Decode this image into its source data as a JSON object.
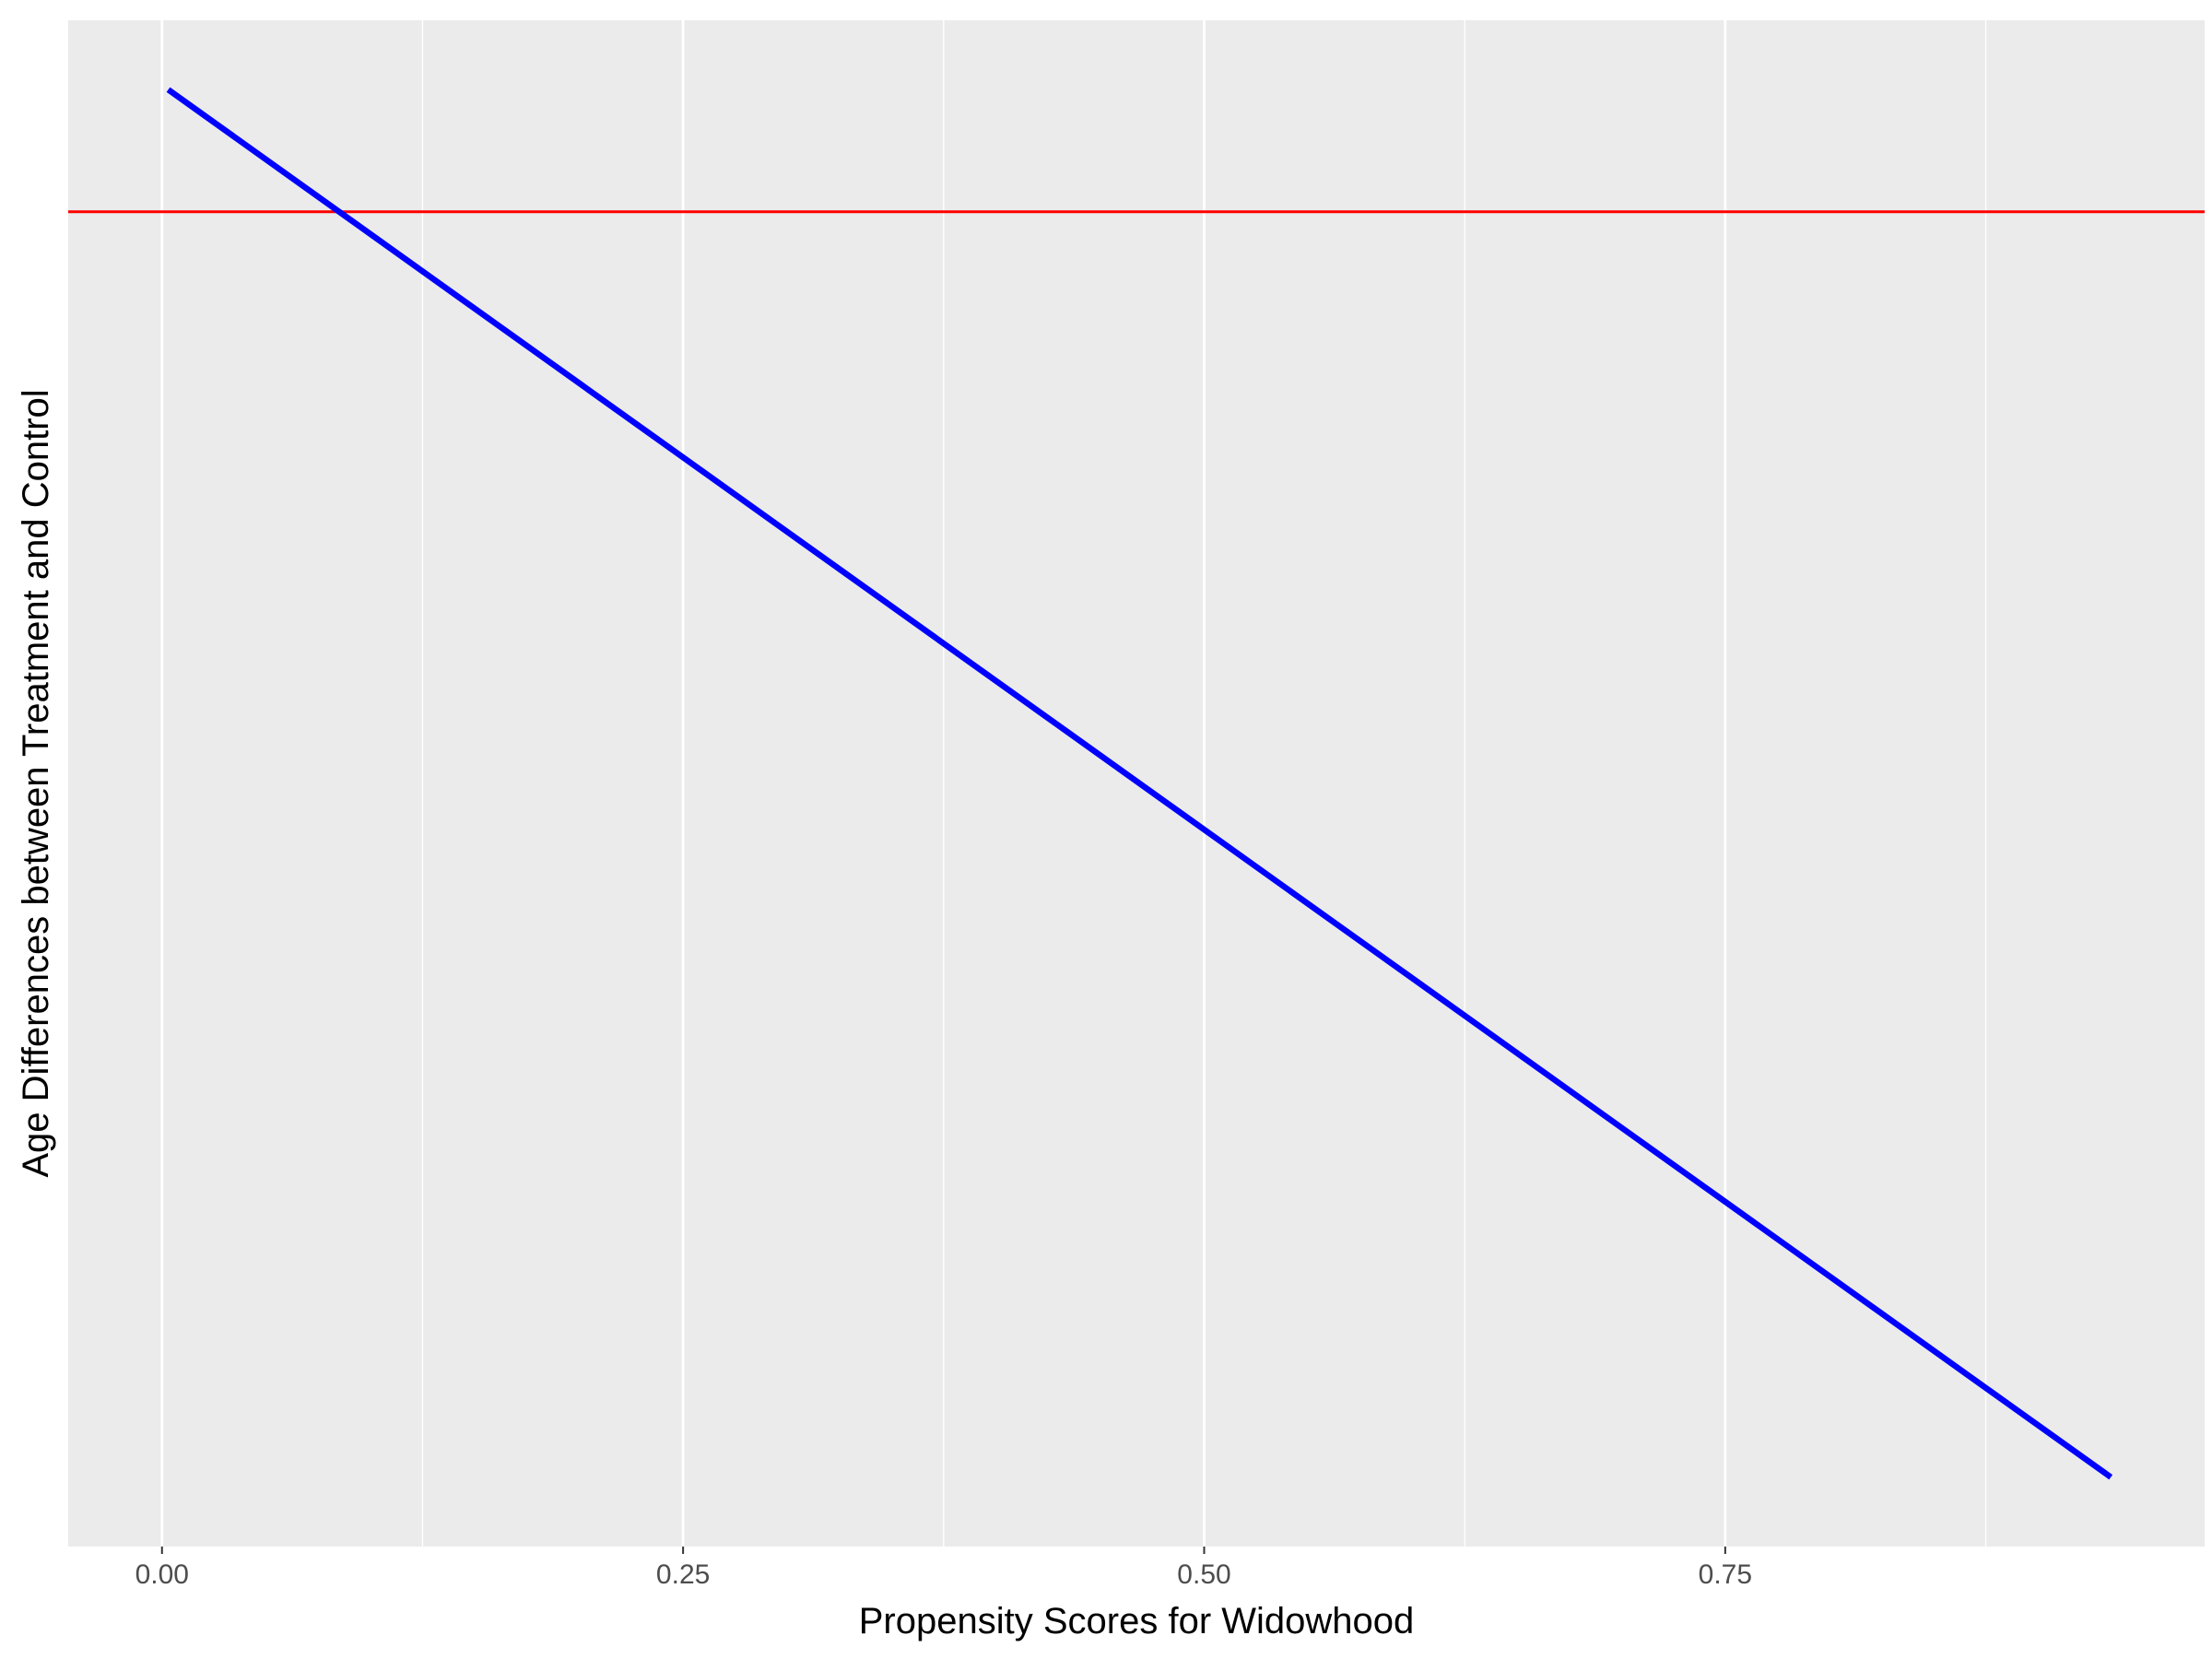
{
  "chart_data": {
    "type": "line",
    "title": "",
    "xlabel": "Propensity Scores for Widowhood",
    "ylabel": "Age Differences between Treatment and Control",
    "xlim": [
      -0.045,
      0.98
    ],
    "ylim": [
      -0.05,
      1.05
    ],
    "x_ticks": [
      {
        "value": 0.0,
        "label": "0.00"
      },
      {
        "value": 0.25,
        "label": "0.25"
      },
      {
        "value": 0.5,
        "label": "0.50"
      },
      {
        "value": 0.75,
        "label": "0.75"
      }
    ],
    "x_minor_ticks": [
      0.125,
      0.375,
      0.625,
      0.875
    ],
    "y_ticks_shown": false,
    "grid": true,
    "background_color": "#ebebeb",
    "grid_color": "#ffffff",
    "series": [
      {
        "color": "#0000ff",
        "x": [
          0.003,
          0.935
        ],
        "y": [
          1.0,
          0.0
        ]
      }
    ],
    "hlines": [
      {
        "y": 0.912,
        "color": "#ff0000"
      }
    ]
  }
}
